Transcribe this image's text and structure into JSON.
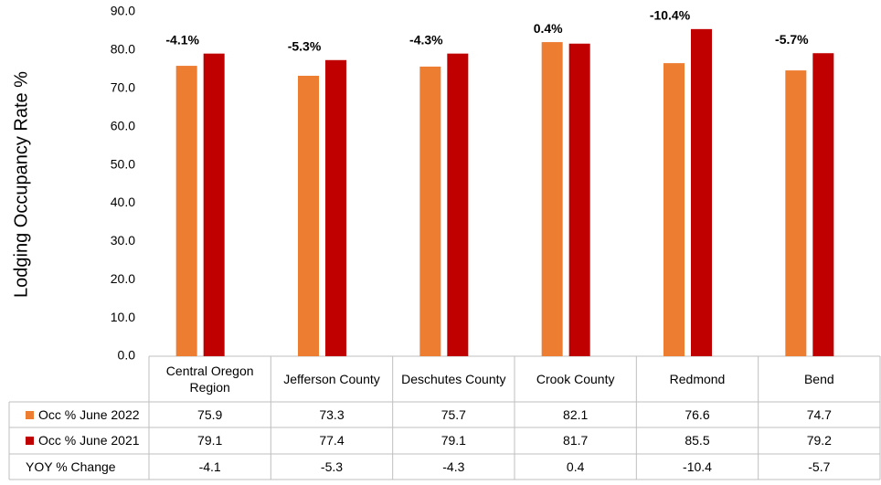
{
  "chart_data": {
    "type": "bar",
    "y_label": "Lodging Occupancy Rate %",
    "categories": [
      "Central Oregon Region",
      "Jefferson County",
      "Deschutes County",
      "Crook County",
      "Redmond",
      "Bend"
    ],
    "series": [
      {
        "name": "Occ % June 2022",
        "color": "#ed7d31",
        "values": [
          75.9,
          73.3,
          75.7,
          82.1,
          76.6,
          74.7
        ]
      },
      {
        "name": "Occ % June 2021",
        "color": "#c00000",
        "values": [
          79.1,
          77.4,
          79.1,
          81.7,
          85.5,
          79.2
        ]
      }
    ],
    "change": {
      "name": "YOY % Change",
      "values": [
        -4.1,
        -5.3,
        -4.3,
        0.4,
        -10.4,
        -5.7
      ],
      "value_labels": [
        "-4.1%",
        "-5.3%",
        "-4.3%",
        "0.4%",
        "-10.4%",
        "-5.7%"
      ],
      "negative_color": "#c00000",
      "positive_color": "#000000"
    },
    "ylim": [
      0,
      90
    ],
    "yticks": [
      {
        "value": 0,
        "label": "0.0"
      },
      {
        "value": 10,
        "label": "10.0"
      },
      {
        "value": 20,
        "label": "20.0"
      },
      {
        "value": 30,
        "label": "30.0"
      },
      {
        "value": 40,
        "label": "40.0"
      },
      {
        "value": 50,
        "label": "50.0"
      },
      {
        "value": 60,
        "label": "60.0"
      },
      {
        "value": 70,
        "label": "70.0"
      },
      {
        "value": 80,
        "label": "80.0"
      },
      {
        "value": 90,
        "label": "90.0"
      }
    ],
    "grid": false
  }
}
